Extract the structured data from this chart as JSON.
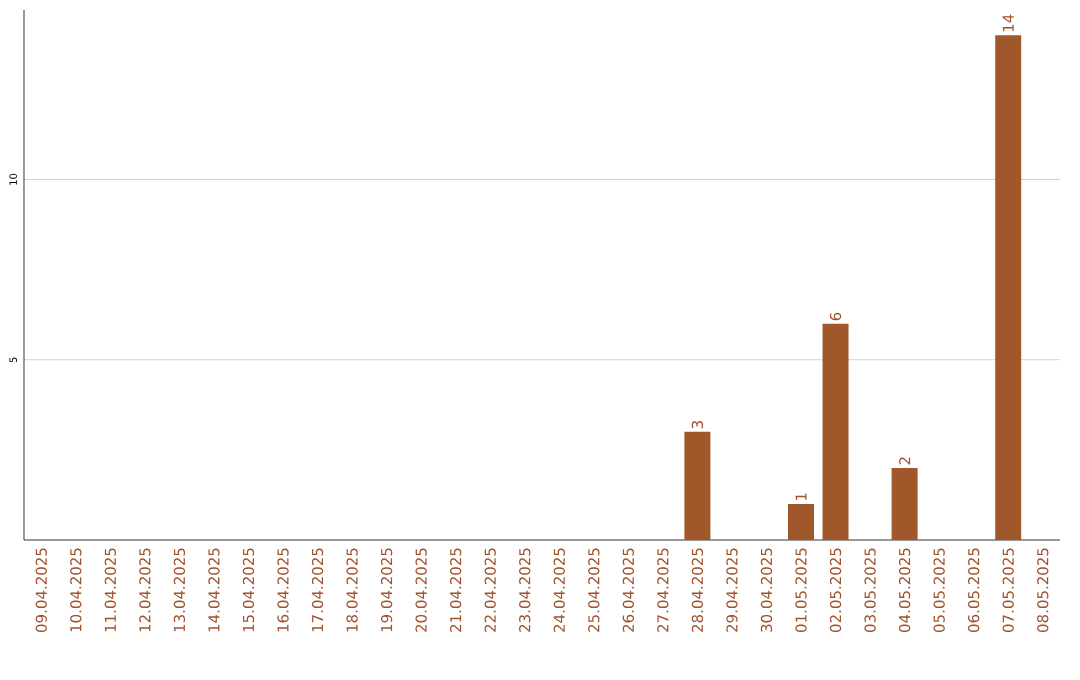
{
  "chart_data": {
    "type": "bar",
    "categories": [
      "09.04.2025",
      "10.04.2025",
      "11.04.2025",
      "12.04.2025",
      "13.04.2025",
      "14.04.2025",
      "15.04.2025",
      "16.04.2025",
      "17.04.2025",
      "18.04.2025",
      "19.04.2025",
      "20.04.2025",
      "21.04.2025",
      "22.04.2025",
      "23.04.2025",
      "24.04.2025",
      "25.04.2025",
      "26.04.2025",
      "27.04.2025",
      "28.04.2025",
      "29.04.2025",
      "30.04.2025",
      "01.05.2025",
      "02.05.2025",
      "03.05.2025",
      "04.05.2025",
      "05.05.2025",
      "06.05.2025",
      "07.05.2025",
      "08.05.2025"
    ],
    "values": [
      0,
      0,
      0,
      0,
      0,
      0,
      0,
      0,
      0,
      0,
      0,
      0,
      0,
      0,
      0,
      0,
      0,
      0,
      0,
      3,
      0,
      0,
      1,
      6,
      0,
      2,
      0,
      0,
      14,
      0
    ],
    "value_labels": [
      null,
      null,
      null,
      null,
      null,
      null,
      null,
      null,
      null,
      null,
      null,
      null,
      null,
      null,
      null,
      null,
      null,
      null,
      null,
      "3",
      null,
      null,
      "1",
      "6",
      null,
      "2",
      null,
      null,
      "14",
      null
    ],
    "color": "#a0582a",
    "ylim": [
      0,
      14.7
    ],
    "yticks": [
      5,
      10
    ],
    "grid": "y"
  }
}
